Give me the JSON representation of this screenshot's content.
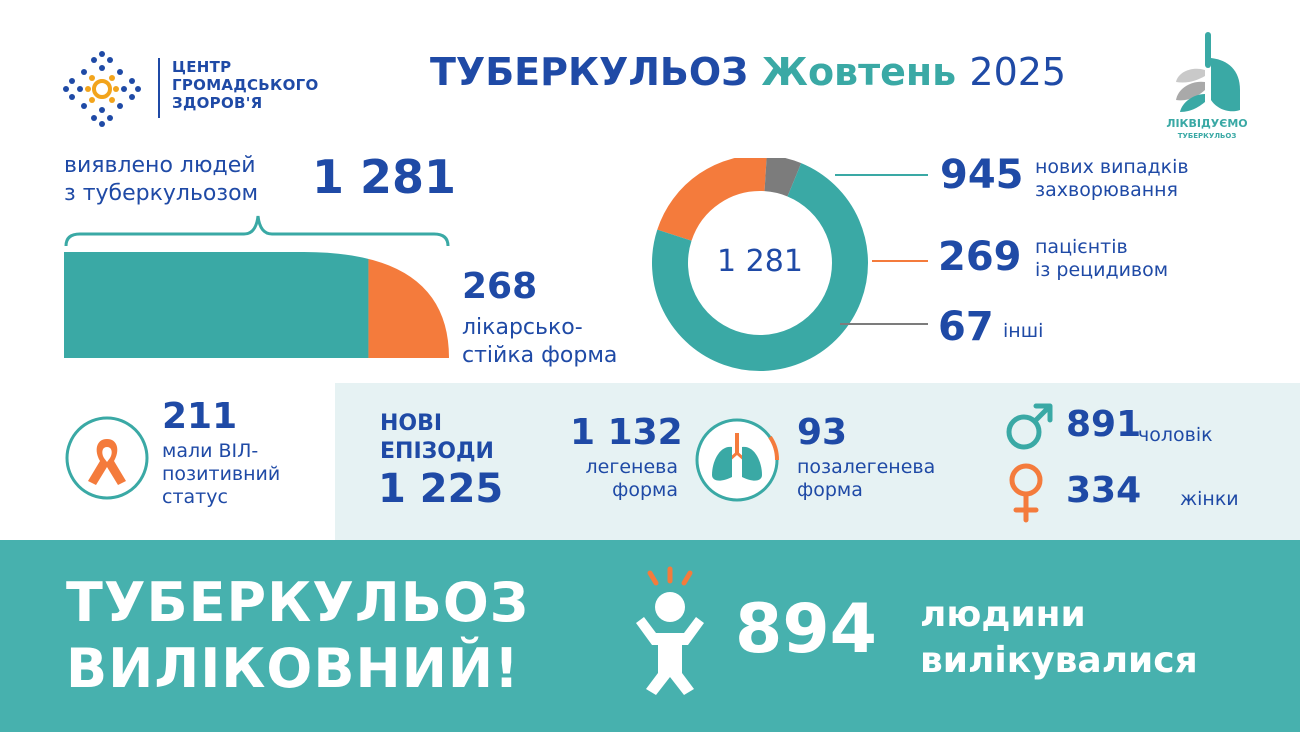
{
  "org": {
    "line1": "ЦЕНТР",
    "line2": "ГРОМАДСЬКОГО",
    "line3": "ЗДОРОВ'Я"
  },
  "title": {
    "part1": "ТУБЕРКУЛЬОЗ",
    "part2": "Жовтень",
    "part3": "2025"
  },
  "brand": {
    "line1": "ЛІКВІДУЄМО",
    "line2": "ТУБЕРКУЛЬОЗ"
  },
  "detected": {
    "label_line1": "виявлено людей",
    "label_line2": "з туберкульозом",
    "value": "1 281"
  },
  "drug_resistant": {
    "value": "268",
    "label_line1": "лікарсько-",
    "label_line2": "стійка форма"
  },
  "hiv": {
    "value": "211",
    "label_line1": "мали ВІЛ-",
    "label_line2": "позитивний",
    "label_line3": "статус"
  },
  "new_episodes": {
    "label_line1": "НОВІ",
    "label_line2": "ЕПІЗОДИ",
    "value": "1 225"
  },
  "pulmonary": {
    "value": "1 132",
    "label_line1": "легенева",
    "label_line2": "форма"
  },
  "extrapulmonary": {
    "value": "93",
    "label_line1": "позалегенева",
    "label_line2": "форма"
  },
  "male": {
    "value": "891",
    "label": "чоловік"
  },
  "female": {
    "value": "334",
    "label": "жінки"
  },
  "cured": {
    "title_line1": "ТУБЕРКУЛЬОЗ",
    "title_line2": "ВИЛІКОВНИЙ!",
    "value": "894",
    "label_line1": "людини",
    "label_line2": "вилікувалися"
  },
  "colors": {
    "teal": "#3aa9a5",
    "orange": "#f47b3c",
    "gray": "#7c7c7c",
    "navy": "#1f4aa6"
  },
  "chart_data": [
    {
      "type": "pie",
      "center_label": "1 281",
      "categories": [
        "нових випадків захворювання",
        "пацієнтів із рецидивом",
        "інші"
      ],
      "values": [
        945,
        269,
        67
      ],
      "value_labels": [
        "945",
        "269",
        "67"
      ],
      "label_lines": [
        [
          "нових випадків",
          "захворювання"
        ],
        [
          "пацієнтів",
          "із рецидивом"
        ],
        [
          "інші"
        ]
      ],
      "colors": [
        "#3aa9a5",
        "#f47b3c",
        "#7c7c7c"
      ]
    },
    {
      "type": "bar",
      "categories": [
        "інші",
        "лікарсько-стійка форма"
      ],
      "values": [
        1013,
        268
      ],
      "total": 1281,
      "colors": [
        "#3aa9a5",
        "#f47b3c"
      ]
    }
  ]
}
